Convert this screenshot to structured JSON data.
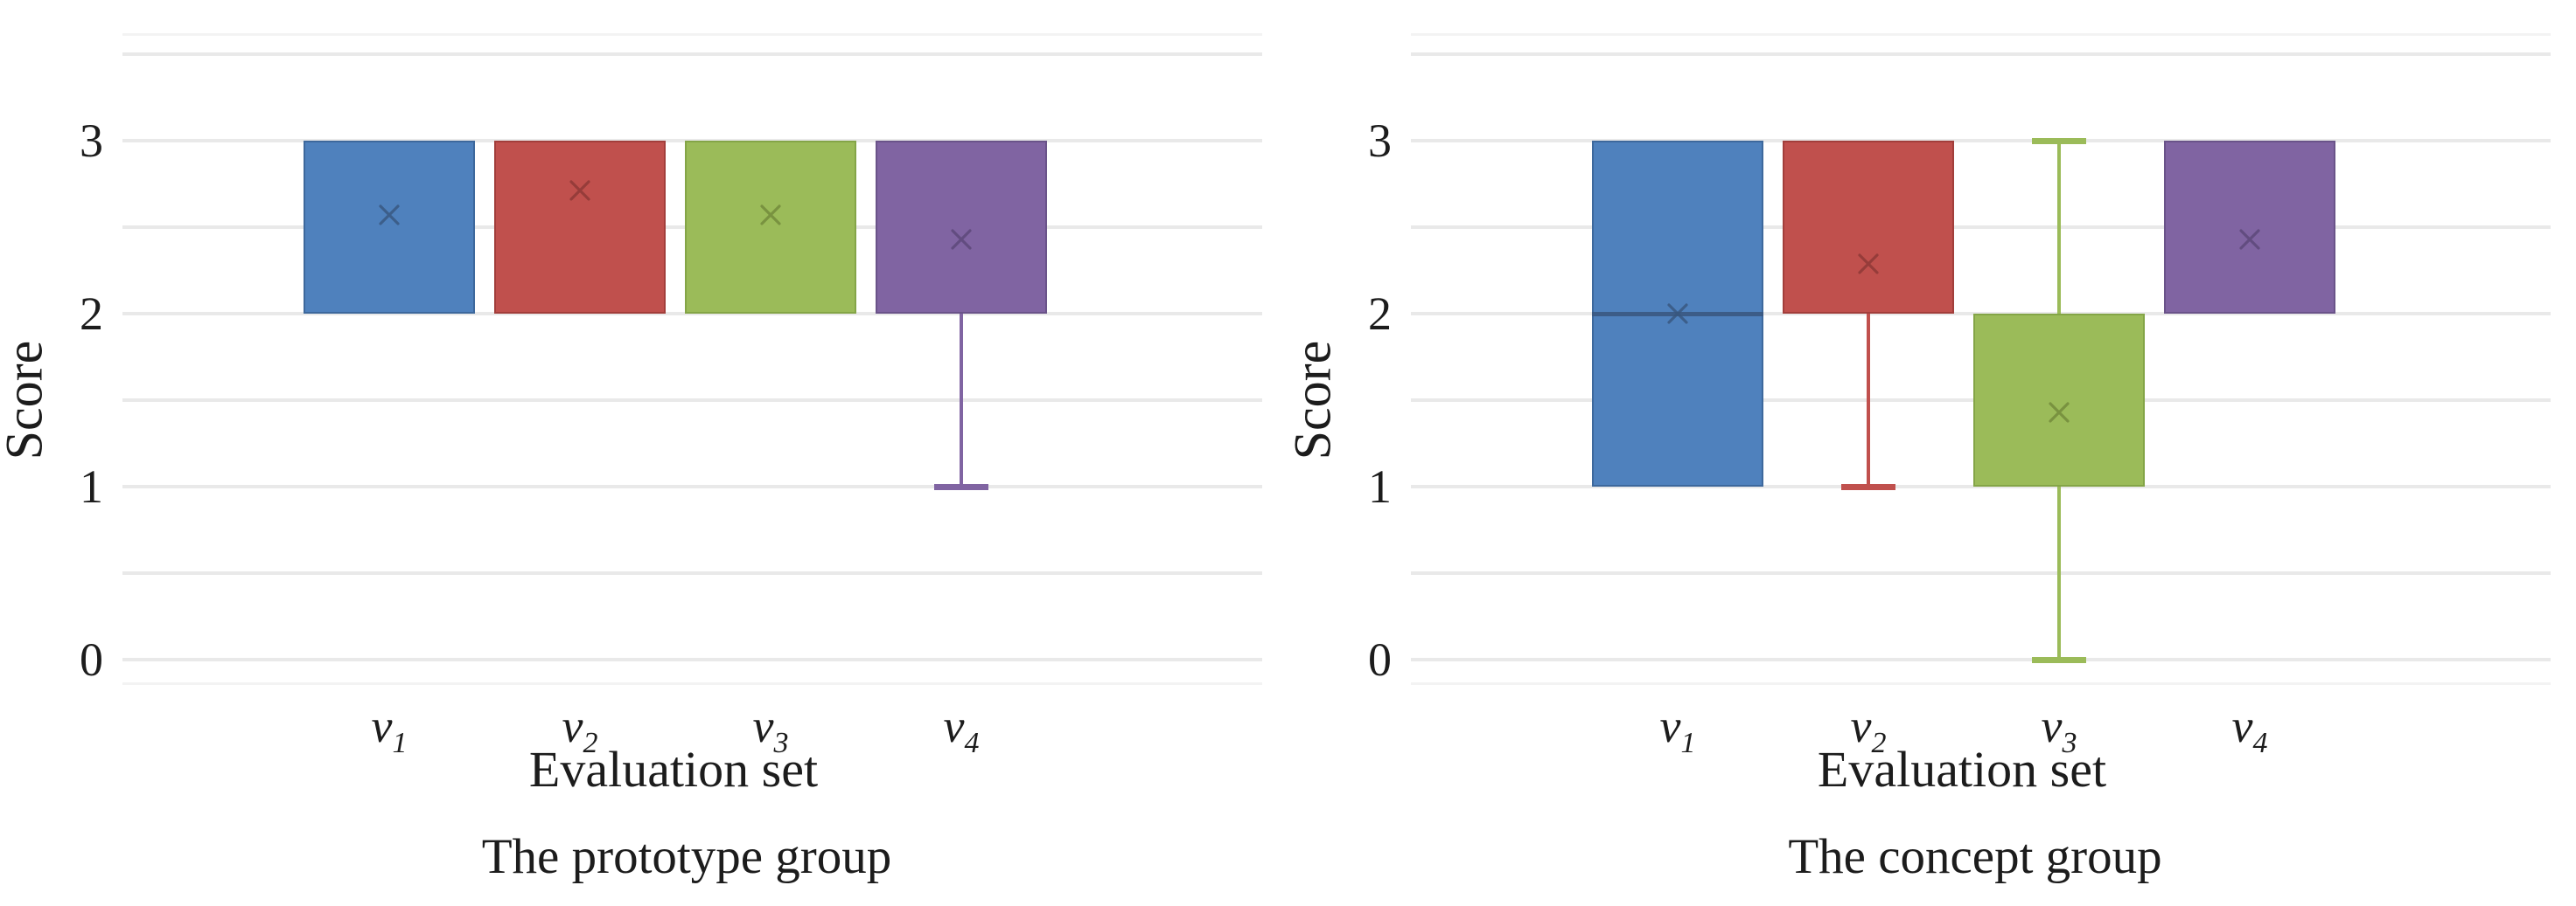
{
  "figure": {
    "background": "#ffffff",
    "grid_color": "#e9e9e9",
    "text_color": "#1c1c1c"
  },
  "chart_data": [
    {
      "type": "box",
      "caption": "The prototype group",
      "xlabel": "Evaluation set",
      "ylabel": "Score",
      "yticks": [
        0,
        1,
        2,
        3
      ],
      "ylim": [
        0,
        3.5
      ],
      "grid_step": 0.5,
      "grid": true,
      "legend": "none",
      "categories": [
        {
          "base": "v",
          "sub": "1"
        },
        {
          "base": "v",
          "sub": "2"
        },
        {
          "base": "v",
          "sub": "3"
        },
        {
          "base": "v",
          "sub": "4"
        }
      ],
      "boxes": [
        {
          "category": "v1",
          "fill": "#4f81bd",
          "border": "#3d689c",
          "marker": "#38567e",
          "box_low": 2,
          "box_high": 3,
          "mean": 2.57
        },
        {
          "category": "v2",
          "fill": "#c0504d",
          "border": "#a23e3b",
          "marker": "#8c3836",
          "box_low": 2,
          "box_high": 3,
          "mean": 2.71
        },
        {
          "category": "v3",
          "fill": "#9bbb59",
          "border": "#84a547",
          "marker": "#71893a",
          "box_low": 2,
          "box_high": 3,
          "mean": 2.57
        },
        {
          "category": "v4",
          "fill": "#8064a2",
          "border": "#6a5389",
          "marker": "#5b4778",
          "box_low": 2,
          "box_high": 3,
          "mean": 2.43,
          "whisker_low": 1
        }
      ]
    },
    {
      "type": "box",
      "caption": "The concept group",
      "xlabel": "Evaluation set",
      "ylabel": "Score",
      "yticks": [
        0,
        1,
        2,
        3
      ],
      "ylim": [
        0,
        3.5
      ],
      "grid_step": 0.5,
      "grid": true,
      "legend": "none",
      "categories": [
        {
          "base": "v",
          "sub": "1"
        },
        {
          "base": "v",
          "sub": "2"
        },
        {
          "base": "v",
          "sub": "3"
        },
        {
          "base": "v",
          "sub": "4"
        }
      ],
      "boxes": [
        {
          "category": "v1",
          "fill": "#4f81bd",
          "border": "#3d689c",
          "marker": "#38567e",
          "box_low": 1,
          "box_high": 3,
          "mean": 2.0,
          "median": 2
        },
        {
          "category": "v2",
          "fill": "#c0504d",
          "border": "#a23e3b",
          "marker": "#8c3836",
          "box_low": 2,
          "box_high": 3,
          "mean": 2.29,
          "whisker_low": 1
        },
        {
          "category": "v3",
          "fill": "#9bbb59",
          "border": "#84a547",
          "marker": "#71893a",
          "box_low": 1,
          "box_high": 2,
          "mean": 1.43,
          "whisker_low": 0,
          "whisker_high": 3
        },
        {
          "category": "v4",
          "fill": "#8064a2",
          "border": "#6a5389",
          "marker": "#5b4778",
          "box_low": 2,
          "box_high": 3,
          "mean": 2.43
        }
      ]
    }
  ]
}
